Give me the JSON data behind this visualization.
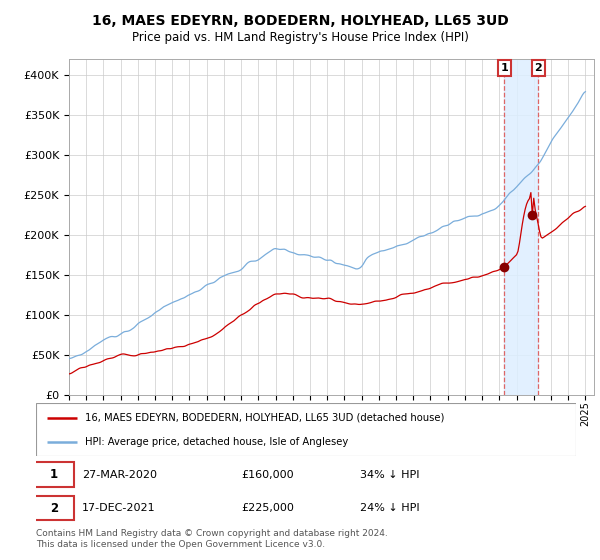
{
  "title": "16, MAES EDEYRN, BODEDERN, HOLYHEAD, LL65 3UD",
  "subtitle": "Price paid vs. HM Land Registry's House Price Index (HPI)",
  "ylim": [
    0,
    420000
  ],
  "yticks": [
    0,
    50000,
    100000,
    150000,
    200000,
    250000,
    300000,
    350000,
    400000
  ],
  "ytick_labels": [
    "£0",
    "£50K",
    "£100K",
    "£150K",
    "£200K",
    "£250K",
    "£300K",
    "£350K",
    "£400K"
  ],
  "legend_line1": "16, MAES EDEYRN, BODEDERN, HOLYHEAD, LL65 3UD (detached house)",
  "legend_line2": "HPI: Average price, detached house, Isle of Anglesey",
  "annotation1_date": "27-MAR-2020",
  "annotation1_price": "£160,000",
  "annotation1_pct": "34% ↓ HPI",
  "annotation2_date": "17-DEC-2021",
  "annotation2_price": "£225,000",
  "annotation2_pct": "24% ↓ HPI",
  "footnote": "Contains HM Land Registry data © Crown copyright and database right 2024.\nThis data is licensed under the Open Government Licence v3.0.",
  "red_color": "#cc0000",
  "blue_color": "#7aaddb",
  "shaded_color": "#ddeeff",
  "annotation_box_color": "#cc3333",
  "t1": 2020.25,
  "t2": 2021.92,
  "price_t1": 160000,
  "price_t2": 225000
}
